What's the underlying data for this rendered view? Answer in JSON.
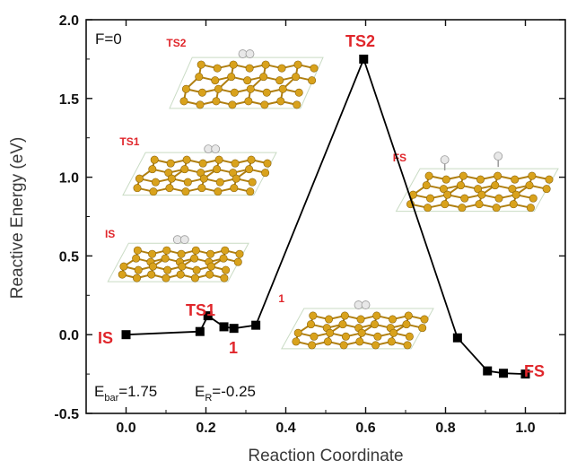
{
  "chart_data": {
    "type": "line",
    "xlabel": "Reaction Coordinate",
    "ylabel": "Reactive Energy (eV)",
    "xlim": [
      -0.1,
      1.1
    ],
    "ylim": [
      -0.5,
      2.0
    ],
    "xticks": [
      "0.0",
      "0.2",
      "0.4",
      "0.6",
      "0.8",
      "1.0"
    ],
    "yticks": [
      "-0.5",
      "0.0",
      "0.5",
      "1.0",
      "1.5",
      "2.0"
    ],
    "grid": false,
    "series": [
      {
        "color": "#000000",
        "marker": "square",
        "x": [
          0.0,
          0.185,
          0.205,
          0.245,
          0.27,
          0.325,
          0.595,
          0.83,
          0.905,
          0.945,
          1.0
        ],
        "y": [
          0.0,
          0.02,
          0.12,
          0.05,
          0.04,
          0.06,
          1.75,
          -0.02,
          -0.23,
          -0.245,
          -0.25
        ]
      }
    ],
    "annotations": {
      "field": "F=0",
      "point_labels": [
        {
          "text": "IS"
        },
        {
          "text": "TS1"
        },
        {
          "text": "1"
        },
        {
          "text": "TS2"
        },
        {
          "text": "FS"
        }
      ],
      "ebar_main": "E",
      "ebar_sub": "bar",
      "ebar_value": "=1.75",
      "er_main": "E",
      "er_sub": "R",
      "er_value": "=-0.25"
    },
    "insets": [
      {
        "label": "TS2"
      },
      {
        "label": "TS1"
      },
      {
        "label": "IS"
      },
      {
        "label": "1"
      },
      {
        "label": "FS"
      }
    ],
    "colors": {
      "line": "#000000",
      "label_red": "#e0262b",
      "carbon": "#d9a21c",
      "bond": "#b07f10",
      "hydrogen": "#e8e8e8",
      "box": "#c9dbc4"
    }
  }
}
